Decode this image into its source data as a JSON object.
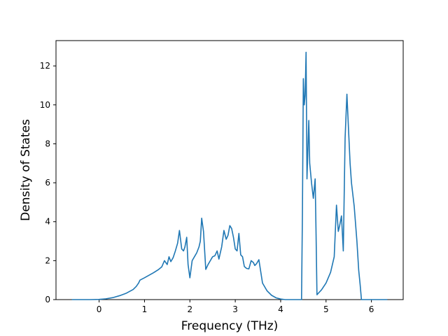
{
  "chart_data": {
    "type": "line",
    "title": "",
    "xlabel": "Frequency (THz)",
    "ylabel": "Density of States",
    "xlim": [
      -0.95,
      6.7
    ],
    "ylim": [
      0,
      13.3
    ],
    "xticks": [
      0,
      1,
      2,
      3,
      4,
      5,
      6
    ],
    "yticks": [
      0,
      2,
      4,
      6,
      8,
      10,
      12
    ],
    "grid": false,
    "legend": "none",
    "series": [
      {
        "name": "",
        "color": "#1f77b4",
        "x": [
          -0.6,
          -0.2,
          0.0,
          0.15,
          0.3,
          0.45,
          0.6,
          0.75,
          0.82,
          0.87,
          0.9,
          1.0,
          1.1,
          1.2,
          1.3,
          1.38,
          1.44,
          1.5,
          1.54,
          1.58,
          1.63,
          1.68,
          1.73,
          1.77,
          1.82,
          1.86,
          1.89,
          1.93,
          1.96,
          2.0,
          2.05,
          2.1,
          2.15,
          2.2,
          2.23,
          2.26,
          2.3,
          2.35,
          2.4,
          2.45,
          2.5,
          2.55,
          2.6,
          2.64,
          2.67,
          2.7,
          2.75,
          2.8,
          2.84,
          2.88,
          2.92,
          2.96,
          3.0,
          3.04,
          3.08,
          3.12,
          3.16,
          3.2,
          3.25,
          3.3,
          3.35,
          3.4,
          3.43,
          3.47,
          3.52,
          3.6,
          3.7,
          3.8,
          3.9,
          4.0,
          4.1,
          4.2,
          4.3,
          4.35,
          4.4,
          4.43,
          4.46,
          4.48,
          4.5,
          4.52,
          4.54,
          4.56,
          4.58,
          4.62,
          4.64,
          4.68,
          4.72,
          4.76,
          4.78,
          4.8,
          4.84,
          4.9,
          5.0,
          5.1,
          5.18,
          5.23,
          5.27,
          5.3,
          5.34,
          5.38,
          5.42,
          5.46,
          5.5,
          5.53,
          5.56,
          5.62,
          5.68,
          5.72,
          5.75,
          5.78,
          5.82,
          5.9,
          6.0,
          6.1,
          6.2,
          6.35
        ],
        "y": [
          0,
          0,
          0.01,
          0.04,
          0.1,
          0.2,
          0.33,
          0.52,
          0.68,
          0.85,
          1.0,
          1.12,
          1.25,
          1.38,
          1.53,
          1.68,
          2.0,
          1.8,
          2.2,
          1.95,
          2.15,
          2.5,
          2.9,
          3.55,
          2.6,
          2.5,
          2.7,
          3.2,
          1.8,
          1.12,
          2.0,
          2.2,
          2.4,
          2.7,
          3.0,
          4.18,
          3.5,
          1.55,
          1.8,
          2.0,
          2.2,
          2.25,
          2.5,
          2.08,
          2.4,
          2.7,
          3.55,
          3.1,
          3.3,
          3.8,
          3.65,
          3.2,
          2.6,
          2.5,
          3.4,
          2.3,
          2.2,
          1.7,
          1.6,
          1.58,
          2.0,
          1.9,
          1.75,
          1.85,
          2.05,
          0.85,
          0.45,
          0.22,
          0.09,
          0.03,
          0.0,
          0.0,
          0.0,
          0.0,
          0.0,
          0.0,
          0.0,
          4.5,
          11.35,
          10.0,
          10.5,
          12.7,
          6.2,
          9.2,
          7.0,
          6.0,
          5.2,
          6.2,
          3.4,
          0.25,
          0.35,
          0.5,
          0.85,
          1.4,
          2.2,
          4.85,
          3.5,
          3.8,
          4.3,
          2.5,
          8.3,
          10.55,
          8.5,
          7.0,
          6.0,
          4.8,
          3.0,
          1.5,
          0.8,
          0.0,
          0.0,
          0.0,
          0.0,
          0.0,
          0.0,
          0.0
        ]
      }
    ]
  }
}
